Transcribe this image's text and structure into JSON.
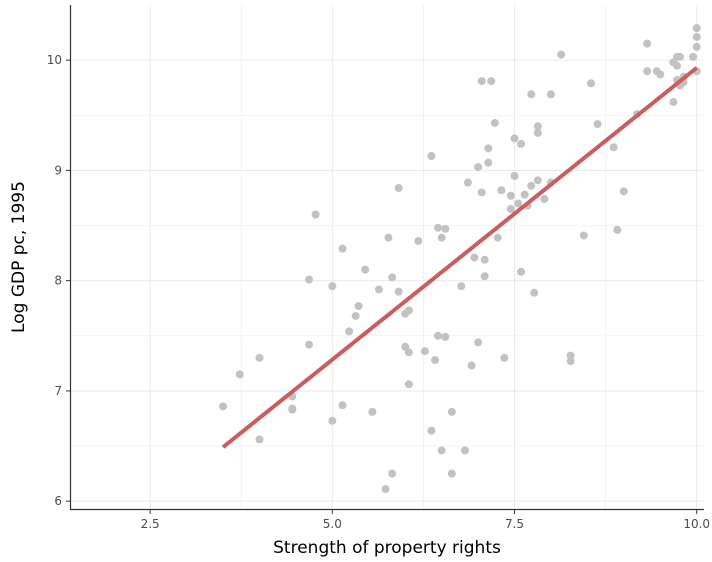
{
  "chart_data": {
    "type": "scatter",
    "title": "",
    "xlabel": "Strength of property rights",
    "ylabel": "Log GDP pc, 1995",
    "xlim": [
      1.4,
      10.1
    ],
    "ylim": [
      5.92,
      10.5
    ],
    "x_ticks": [
      2.5,
      5.0,
      7.5,
      10.0
    ],
    "x_tick_labels": [
      "2.5",
      "5.0",
      "7.5",
      "10.0"
    ],
    "y_ticks": [
      6,
      7,
      8,
      9,
      10
    ],
    "y_tick_labels": [
      "6",
      "7",
      "8",
      "9",
      "10"
    ],
    "grid": true,
    "colors": {
      "points": "#c2c2c2",
      "fit_line": "#cd5c5c",
      "grid": "#ebebeb",
      "axis": "#333333"
    },
    "fit_line": {
      "x": [
        3.5,
        10.0
      ],
      "y": [
        6.49,
        9.93
      ]
    },
    "points": [
      {
        "x": 3.5,
        "y": 6.86
      },
      {
        "x": 3.73,
        "y": 7.15
      },
      {
        "x": 4.0,
        "y": 7.3
      },
      {
        "x": 4.0,
        "y": 6.56
      },
      {
        "x": 4.45,
        "y": 6.95
      },
      {
        "x": 4.45,
        "y": 6.84
      },
      {
        "x": 4.45,
        "y": 6.83
      },
      {
        "x": 4.68,
        "y": 7.42
      },
      {
        "x": 4.68,
        "y": 8.01
      },
      {
        "x": 4.77,
        "y": 8.6
      },
      {
        "x": 5.0,
        "y": 7.95
      },
      {
        "x": 5.0,
        "y": 6.73
      },
      {
        "x": 5.14,
        "y": 8.29
      },
      {
        "x": 5.14,
        "y": 6.87
      },
      {
        "x": 5.23,
        "y": 7.54
      },
      {
        "x": 5.32,
        "y": 7.68
      },
      {
        "x": 5.36,
        "y": 7.77
      },
      {
        "x": 5.45,
        "y": 8.1
      },
      {
        "x": 5.55,
        "y": 6.81
      },
      {
        "x": 5.64,
        "y": 7.92
      },
      {
        "x": 5.73,
        "y": 6.11
      },
      {
        "x": 5.77,
        "y": 8.39
      },
      {
        "x": 5.82,
        "y": 8.03
      },
      {
        "x": 5.82,
        "y": 6.25
      },
      {
        "x": 5.91,
        "y": 8.84
      },
      {
        "x": 5.91,
        "y": 7.9
      },
      {
        "x": 6.0,
        "y": 7.7
      },
      {
        "x": 6.0,
        "y": 7.4
      },
      {
        "x": 6.05,
        "y": 7.73
      },
      {
        "x": 6.05,
        "y": 7.35
      },
      {
        "x": 6.05,
        "y": 7.06
      },
      {
        "x": 6.18,
        "y": 8.36
      },
      {
        "x": 6.27,
        "y": 7.36
      },
      {
        "x": 6.36,
        "y": 9.13
      },
      {
        "x": 6.36,
        "y": 6.64
      },
      {
        "x": 6.41,
        "y": 7.28
      },
      {
        "x": 6.45,
        "y": 8.48
      },
      {
        "x": 6.45,
        "y": 7.5
      },
      {
        "x": 6.5,
        "y": 8.39
      },
      {
        "x": 6.5,
        "y": 6.46
      },
      {
        "x": 6.55,
        "y": 8.47
      },
      {
        "x": 6.55,
        "y": 7.49
      },
      {
        "x": 6.64,
        "y": 6.81
      },
      {
        "x": 6.64,
        "y": 6.25
      },
      {
        "x": 6.77,
        "y": 7.95
      },
      {
        "x": 6.82,
        "y": 6.46
      },
      {
        "x": 6.86,
        "y": 8.89
      },
      {
        "x": 6.91,
        "y": 7.23
      },
      {
        "x": 6.95,
        "y": 8.21
      },
      {
        "x": 7.0,
        "y": 9.03
      },
      {
        "x": 7.0,
        "y": 7.44
      },
      {
        "x": 7.05,
        "y": 9.81
      },
      {
        "x": 7.05,
        "y": 8.8
      },
      {
        "x": 7.09,
        "y": 8.19
      },
      {
        "x": 7.09,
        "y": 8.04
      },
      {
        "x": 7.14,
        "y": 9.2
      },
      {
        "x": 7.14,
        "y": 9.07
      },
      {
        "x": 7.18,
        "y": 9.81
      },
      {
        "x": 7.23,
        "y": 9.43
      },
      {
        "x": 7.27,
        "y": 8.39
      },
      {
        "x": 7.32,
        "y": 8.82
      },
      {
        "x": 7.36,
        "y": 7.3
      },
      {
        "x": 7.45,
        "y": 8.77
      },
      {
        "x": 7.45,
        "y": 8.65
      },
      {
        "x": 7.5,
        "y": 9.29
      },
      {
        "x": 7.5,
        "y": 8.95
      },
      {
        "x": 7.55,
        "y": 8.7
      },
      {
        "x": 7.59,
        "y": 9.24
      },
      {
        "x": 7.59,
        "y": 8.08
      },
      {
        "x": 7.64,
        "y": 8.78
      },
      {
        "x": 7.68,
        "y": 8.68
      },
      {
        "x": 7.73,
        "y": 9.69
      },
      {
        "x": 7.73,
        "y": 8.86
      },
      {
        "x": 7.77,
        "y": 7.89
      },
      {
        "x": 7.82,
        "y": 9.4
      },
      {
        "x": 7.82,
        "y": 9.34
      },
      {
        "x": 7.82,
        "y": 8.91
      },
      {
        "x": 7.91,
        "y": 8.74
      },
      {
        "x": 8.0,
        "y": 9.69
      },
      {
        "x": 8.0,
        "y": 8.89
      },
      {
        "x": 8.14,
        "y": 10.05
      },
      {
        "x": 8.27,
        "y": 7.32
      },
      {
        "x": 8.27,
        "y": 7.27
      },
      {
        "x": 8.45,
        "y": 8.41
      },
      {
        "x": 8.55,
        "y": 9.79
      },
      {
        "x": 8.64,
        "y": 9.42
      },
      {
        "x": 8.86,
        "y": 9.21
      },
      {
        "x": 8.91,
        "y": 8.46
      },
      {
        "x": 9.0,
        "y": 8.81
      },
      {
        "x": 9.18,
        "y": 9.51
      },
      {
        "x": 9.32,
        "y": 10.15
      },
      {
        "x": 9.32,
        "y": 9.9
      },
      {
        "x": 9.45,
        "y": 9.9
      },
      {
        "x": 9.5,
        "y": 9.87
      },
      {
        "x": 9.68,
        "y": 9.98
      },
      {
        "x": 9.68,
        "y": 9.62
      },
      {
        "x": 9.73,
        "y": 10.03
      },
      {
        "x": 9.73,
        "y": 9.95
      },
      {
        "x": 9.73,
        "y": 9.82
      },
      {
        "x": 9.77,
        "y": 10.03
      },
      {
        "x": 9.77,
        "y": 9.77
      },
      {
        "x": 9.82,
        "y": 9.85
      },
      {
        "x": 9.82,
        "y": 9.8
      },
      {
        "x": 9.95,
        "y": 10.03
      },
      {
        "x": 10.0,
        "y": 10.29
      },
      {
        "x": 10.0,
        "y": 10.21
      },
      {
        "x": 10.0,
        "y": 10.12
      },
      {
        "x": 10.0,
        "y": 9.9
      }
    ]
  }
}
